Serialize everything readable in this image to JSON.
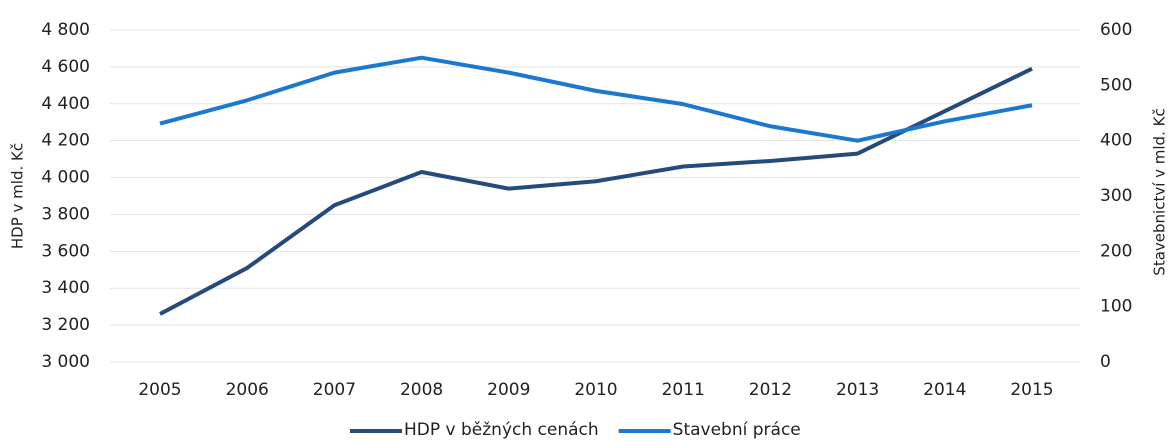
{
  "chart_data": {
    "type": "line",
    "ylabel": "HDP v mld. Kč",
    "y2label": "Stavebnictví v mld. Kč",
    "categories": [
      "2005",
      "2006",
      "2007",
      "2008",
      "2009",
      "2010",
      "2011",
      "2012",
      "2013",
      "2014",
      "2015"
    ],
    "series": [
      {
        "name": "HDP v běžných cenách",
        "color": "#254a7c",
        "values": [
          3260,
          3510,
          3850,
          4030,
          3940,
          3980,
          4060,
          4090,
          4130,
          4360,
          4590
        ]
      },
      {
        "name": "Stavební práce",
        "color": "#1a78d2",
        "axis": "y2",
        "values": [
          431,
          473,
          523,
          550,
          523,
          490,
          466,
          426,
          400,
          435,
          464
        ]
      }
    ],
    "ylim": [
      3000,
      4800
    ],
    "yticks": [
      {
        "value": 3000,
        "label": "3 000"
      },
      {
        "value": 3200,
        "label": "3 200"
      },
      {
        "value": 3400,
        "label": "3 400"
      },
      {
        "value": 3600,
        "label": "3 600"
      },
      {
        "value": 3800,
        "label": "3 800"
      },
      {
        "value": 4000,
        "label": "4 000"
      },
      {
        "value": 4200,
        "label": "4 200"
      },
      {
        "value": 4400,
        "label": "4 400"
      },
      {
        "value": 4600,
        "label": "4 600"
      },
      {
        "value": 4800,
        "label": "4 800"
      }
    ],
    "y2lim": [
      0,
      600
    ],
    "y2ticks": [
      0,
      100,
      200,
      300,
      400,
      500,
      600
    ],
    "grid": true,
    "legend": "bottom"
  }
}
